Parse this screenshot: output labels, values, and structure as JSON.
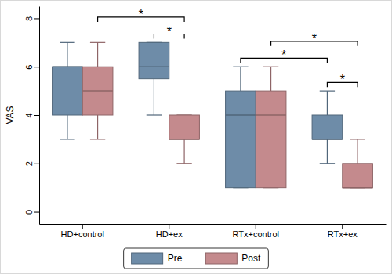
{
  "chart_data": {
    "type": "box",
    "y_label": "VAS",
    "categories": [
      "HD+control",
      "HD+ex",
      "RTx+control",
      "RTx+ex"
    ],
    "series": [
      {
        "name": "Pre",
        "color": "#6e8ca8",
        "values": [
          {
            "min": 3,
            "q1": 4,
            "median": 6,
            "q3": 6,
            "max": 7
          },
          {
            "min": 4,
            "q1": 5.5,
            "median": 6,
            "q3": 7,
            "max": 7
          },
          {
            "min": 1,
            "q1": 1,
            "median": 4,
            "q3": 5,
            "max": 6
          },
          {
            "min": 2,
            "q1": 3,
            "median": 3,
            "q3": 4,
            "max": 5
          }
        ]
      },
      {
        "name": "Post",
        "color": "#c48a8d",
        "values": [
          {
            "min": 3,
            "q1": 4,
            "median": 5,
            "q3": 6,
            "max": 7
          },
          {
            "min": 2,
            "q1": 3,
            "median": 3,
            "q3": 4,
            "max": 4
          },
          {
            "min": 1,
            "q1": 1,
            "median": 4,
            "q3": 5,
            "max": 6
          },
          {
            "min": 1,
            "q1": 1,
            "median": 1,
            "q3": 2,
            "max": 3
          }
        ]
      }
    ],
    "ylim": [
      -0.5,
      8.5
    ],
    "yticks": [
      0,
      2,
      4,
      6,
      8
    ],
    "grid": false,
    "legend": "bottom",
    "annotations": [
      {
        "text": "*",
        "from": [
          "HD+control",
          "Post"
        ],
        "to": [
          "HD+ex",
          "Post"
        ]
      },
      {
        "text": "*",
        "from": [
          "HD+ex",
          "Pre"
        ],
        "to": [
          "HD+ex",
          "Post"
        ]
      },
      {
        "text": "*",
        "from": [
          "RTx+control",
          "Pre"
        ],
        "to": [
          "RTx+ex",
          "Pre"
        ]
      },
      {
        "text": "*",
        "from": [
          "RTx+control",
          "Post"
        ],
        "to": [
          "RTx+ex",
          "Post"
        ]
      },
      {
        "text": "*",
        "from": [
          "RTx+ex",
          "Pre"
        ],
        "to": [
          "RTx+ex",
          "Post"
        ]
      }
    ]
  }
}
